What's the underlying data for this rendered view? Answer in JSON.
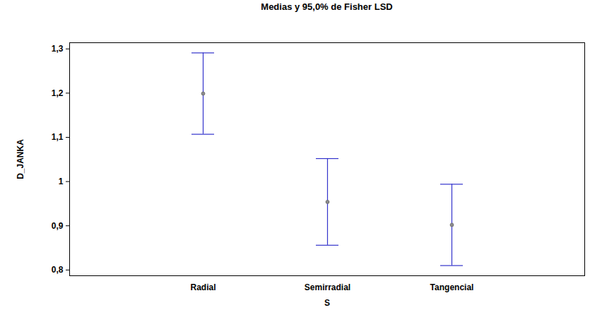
{
  "chart_data": {
    "type": "errorbar",
    "title": "Medias y 95,0% de Fisher LSD",
    "x_label": "S",
    "y_label": "D_JANKA",
    "categories": [
      "Radial",
      "Semirradial",
      "Tangencial"
    ],
    "values": [
      1.199,
      0.954,
      0.902
    ],
    "lower": [
      1.107,
      0.856,
      0.81
    ],
    "upper": [
      1.291,
      1.052,
      0.994
    ],
    "color": "#3333cc",
    "marker_color": "#8c8c8c",
    "marker": "circle",
    "ylim": [
      0.787,
      1.314
    ],
    "yticks": [
      {
        "value": 0.8,
        "label": "0,8"
      },
      {
        "value": 0.9,
        "label": "0,9"
      },
      1,
      {
        "value": 1.1,
        "label": "1,1"
      },
      {
        "value": 1.2,
        "label": "1,2"
      },
      {
        "value": 1.3,
        "label": "1,3"
      }
    ],
    "grid": false
  }
}
